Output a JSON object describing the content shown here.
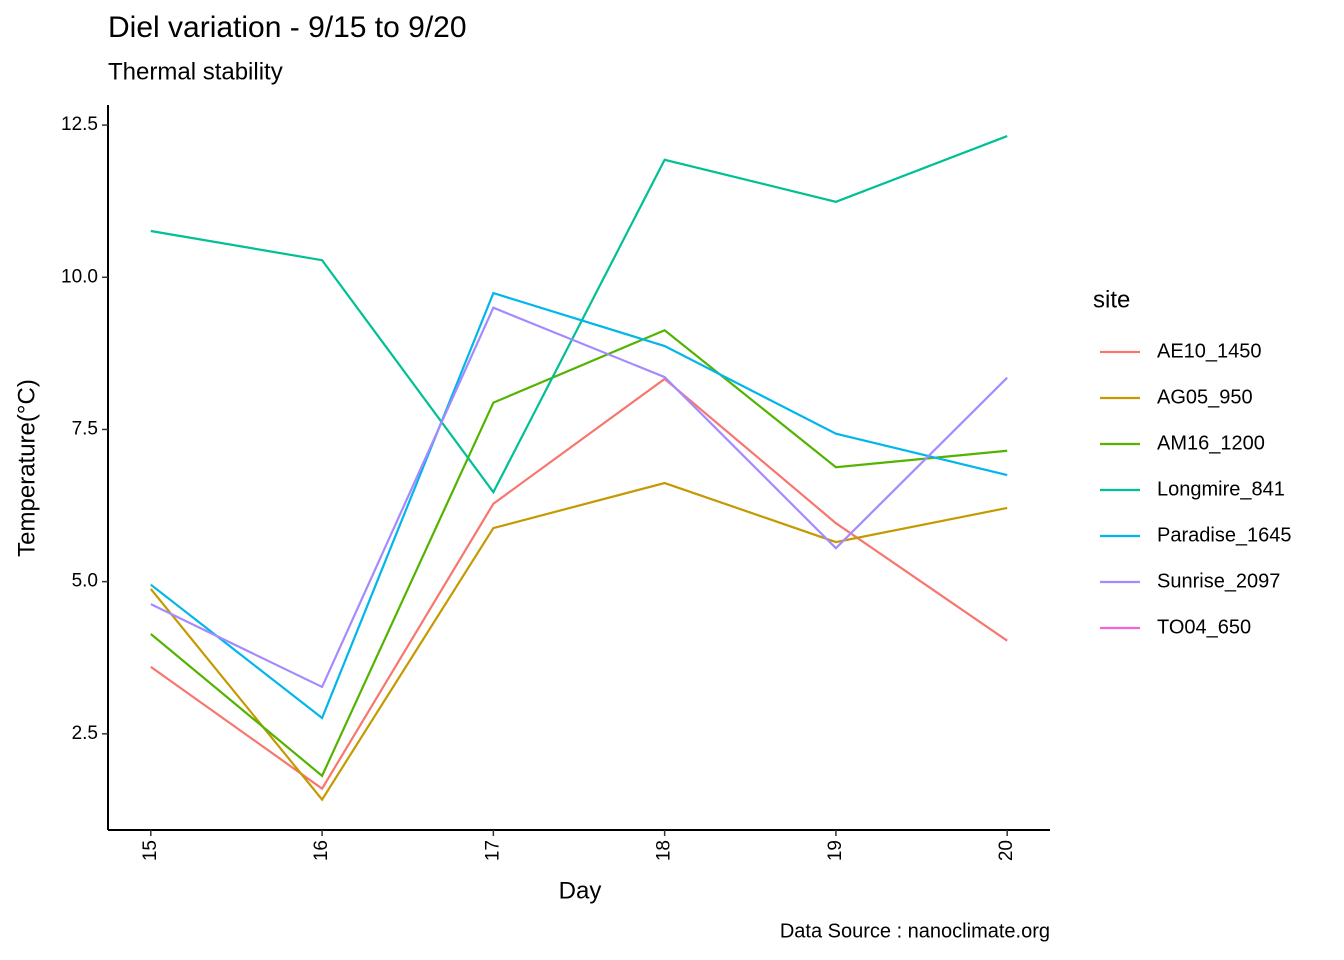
{
  "chart_data": {
    "type": "line",
    "title": "Diel variation - 9/15 to 9/20",
    "subtitle": "Thermal stability",
    "caption": "Data Source : nanoclimate.org",
    "xlabel": "Day",
    "ylabel": "Temperature(°C)",
    "legend_title": "site",
    "x": [
      15,
      16,
      17,
      18,
      19,
      20
    ],
    "xlim": [
      14.75,
      20.25
    ],
    "xticks": [
      15,
      16,
      17,
      18,
      19,
      20
    ],
    "ylim": [
      0.92,
      12.83
    ],
    "yticks": [
      2.5,
      {
        "value": 5,
        "label": "5.0"
      },
      7.5,
      {
        "value": 10,
        "label": "10.0"
      },
      12.5
    ],
    "legend": "right",
    "series": [
      {
        "name": "AE10_1450",
        "color": "#F8766D",
        "values": [
          3.6,
          1.6,
          6.28,
          8.33,
          5.96,
          4.03
        ]
      },
      {
        "name": "AG05_950",
        "color": "#C49A00",
        "values": [
          4.88,
          1.42,
          5.88,
          6.62,
          5.65,
          6.21
        ]
      },
      {
        "name": "AM16_1200",
        "color": "#53B400",
        "values": [
          4.14,
          1.81,
          7.94,
          9.13,
          6.88,
          7.15
        ]
      },
      {
        "name": "Longmire_841",
        "color": "#00C094",
        "values": [
          10.76,
          10.28,
          6.47,
          11.93,
          11.24,
          12.32
        ]
      },
      {
        "name": "Paradise_1645",
        "color": "#00B6EB",
        "values": [
          4.95,
          2.76,
          9.74,
          8.87,
          7.43,
          6.75
        ]
      },
      {
        "name": "Sunrise_2097",
        "color": "#A58AFF",
        "values": [
          4.63,
          3.27,
          9.5,
          8.36,
          5.55,
          8.35
        ]
      },
      {
        "name": "TO04_650",
        "color": "#FB61D7",
        "values": [
          null,
          null,
          null,
          null,
          null,
          null
        ]
      }
    ]
  }
}
